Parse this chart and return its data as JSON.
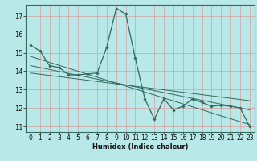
{
  "xlabel": "Humidex (Indice chaleur)",
  "bg_color": "#b8e8e8",
  "line_color": "#2e6b5e",
  "marker_color": "#2e6b5e",
  "xlim": [
    -0.5,
    23.5
  ],
  "ylim": [
    10.7,
    17.6
  ],
  "yticks": [
    11,
    12,
    13,
    14,
    15,
    16,
    17
  ],
  "xticks": [
    0,
    1,
    2,
    3,
    4,
    5,
    6,
    7,
    8,
    9,
    10,
    11,
    12,
    13,
    14,
    15,
    16,
    17,
    18,
    19,
    20,
    21,
    22,
    23
  ],
  "series": [
    [
      0,
      15.4
    ],
    [
      1,
      15.1
    ],
    [
      2,
      14.3
    ],
    [
      3,
      14.2
    ],
    [
      4,
      13.8
    ],
    [
      5,
      13.8
    ],
    [
      6,
      13.85
    ],
    [
      7,
      13.9
    ],
    [
      8,
      15.3
    ],
    [
      9,
      17.4
    ],
    [
      10,
      17.1
    ],
    [
      11,
      14.7
    ],
    [
      12,
      12.5
    ],
    [
      13,
      11.4
    ],
    [
      14,
      12.5
    ],
    [
      15,
      11.9
    ],
    [
      16,
      12.1
    ],
    [
      17,
      12.5
    ],
    [
      18,
      12.3
    ],
    [
      19,
      12.1
    ],
    [
      20,
      12.15
    ],
    [
      21,
      12.1
    ],
    [
      22,
      12.0
    ],
    [
      23,
      11.0
    ]
  ],
  "trend_lines": [
    {
      "x": [
        0,
        23
      ],
      "y": [
        14.8,
        11.1
      ]
    },
    {
      "x": [
        0,
        23
      ],
      "y": [
        14.3,
        11.9
      ]
    },
    {
      "x": [
        0,
        23
      ],
      "y": [
        13.9,
        12.4
      ]
    }
  ],
  "grid_color": "#d8a0a0",
  "xlabel_fontsize": 6,
  "tick_fontsize": 5.5
}
